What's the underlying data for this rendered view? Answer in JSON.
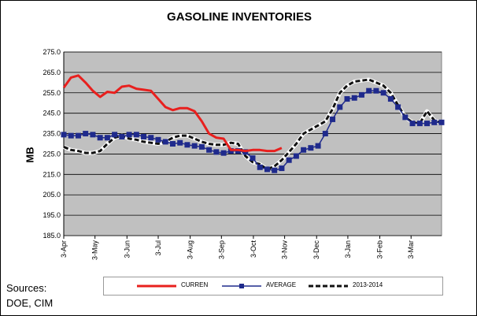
{
  "chart_data": {
    "type": "line",
    "title": "GASOLINE INVENTORIES",
    "ylabel": "MB",
    "xlabel": "",
    "ylim": [
      185.0,
      275.0
    ],
    "yticks": [
      "275.0",
      "265.0",
      "255.0",
      "245.0",
      "235.0",
      "225.0",
      "215.0",
      "205.0",
      "195.0",
      "185.0"
    ],
    "ytick_values": [
      275,
      265,
      255,
      245,
      235,
      225,
      215,
      205,
      195,
      185
    ],
    "xlim": [
      0,
      52
    ],
    "xticks": [
      "3-Apr",
      "3-May",
      "3-Jun",
      "3-Jul",
      "3-Aug",
      "3-Sep",
      "3-Oct",
      "3-Nov",
      "3-Dec",
      "3-Jan",
      "3-Feb",
      "3-Mar"
    ],
    "xtick_positions": [
      0,
      4.3,
      8.7,
      13,
      17.4,
      21.7,
      26.1,
      30.4,
      34.8,
      39.1,
      43.5,
      47.8
    ],
    "grid": "horizontal",
    "legend": "bottom",
    "series": [
      {
        "name": "CURREN",
        "color": "#e8201e",
        "style": "solid",
        "x": [
          0,
          1,
          2,
          3,
          4,
          5,
          6,
          7,
          8,
          9,
          10,
          11,
          12,
          13,
          14,
          15,
          16,
          17,
          18,
          19,
          20,
          21,
          22,
          23,
          24,
          25,
          26,
          27,
          28,
          29,
          30
        ],
        "values": [
          257.5,
          262.5,
          263.5,
          260,
          256,
          253,
          255.5,
          255,
          258,
          258.5,
          257,
          256.5,
          256,
          252,
          248,
          246.5,
          247.5,
          247.5,
          246,
          241,
          235,
          233,
          232.5,
          227,
          227,
          226.5,
          227,
          227,
          226.5,
          226.5,
          228
        ]
      },
      {
        "name": "AVERAGE",
        "color": "#1f2a8c",
        "style": "marker",
        "x": [
          0,
          1,
          2,
          3,
          4,
          5,
          6,
          7,
          8,
          9,
          10,
          11,
          12,
          13,
          14,
          15,
          16,
          17,
          18,
          19,
          20,
          21,
          22,
          23,
          24,
          25,
          26,
          27,
          28,
          29,
          30,
          31,
          32,
          33,
          34,
          35,
          36,
          37,
          38,
          39,
          40,
          41,
          42,
          43,
          44,
          45,
          46,
          47,
          48,
          49,
          50,
          51,
          52
        ],
        "values": [
          234.5,
          234,
          234,
          235,
          234.5,
          233,
          233,
          234.5,
          233.5,
          234.5,
          234.5,
          233.5,
          233,
          232,
          231,
          230,
          230.5,
          229.5,
          229,
          228.5,
          227,
          226,
          225.5,
          226.5,
          226.5,
          226,
          223,
          218.5,
          217.5,
          217,
          218,
          222,
          224,
          227,
          228,
          229,
          235,
          242,
          248,
          252,
          252.5,
          254,
          256,
          256,
          255,
          252,
          248,
          243,
          240,
          240,
          240,
          240.5,
          240.5
        ]
      },
      {
        "name": "2013-2014",
        "color": "#111111",
        "style": "dashed",
        "x": [
          0,
          1,
          2,
          3,
          4,
          5,
          6,
          7,
          8,
          9,
          10,
          11,
          12,
          13,
          14,
          15,
          16,
          17,
          18,
          19,
          20,
          21,
          22,
          23,
          24,
          25,
          26,
          27,
          28,
          29,
          30,
          31,
          32,
          33,
          34,
          35,
          36,
          37,
          38,
          39,
          40,
          41,
          42,
          43,
          44,
          45,
          46,
          47,
          48,
          49,
          50,
          51,
          52
        ],
        "values": [
          228.5,
          227,
          226.5,
          225.5,
          225.5,
          226.5,
          230,
          233,
          234,
          232.5,
          232,
          231,
          230.5,
          230,
          231,
          233,
          234,
          234,
          232.5,
          231,
          230,
          229.5,
          229.5,
          230.5,
          230,
          224,
          221,
          220,
          217.5,
          219,
          222,
          226,
          230,
          235,
          237,
          239,
          241,
          247,
          255,
          258.5,
          260.5,
          261,
          261.5,
          260,
          258.5,
          255,
          249,
          243,
          240.5,
          240,
          246,
          241.5,
          240
        ]
      }
    ]
  },
  "sources": [
    "Sources:",
    "DOE, CIM"
  ]
}
